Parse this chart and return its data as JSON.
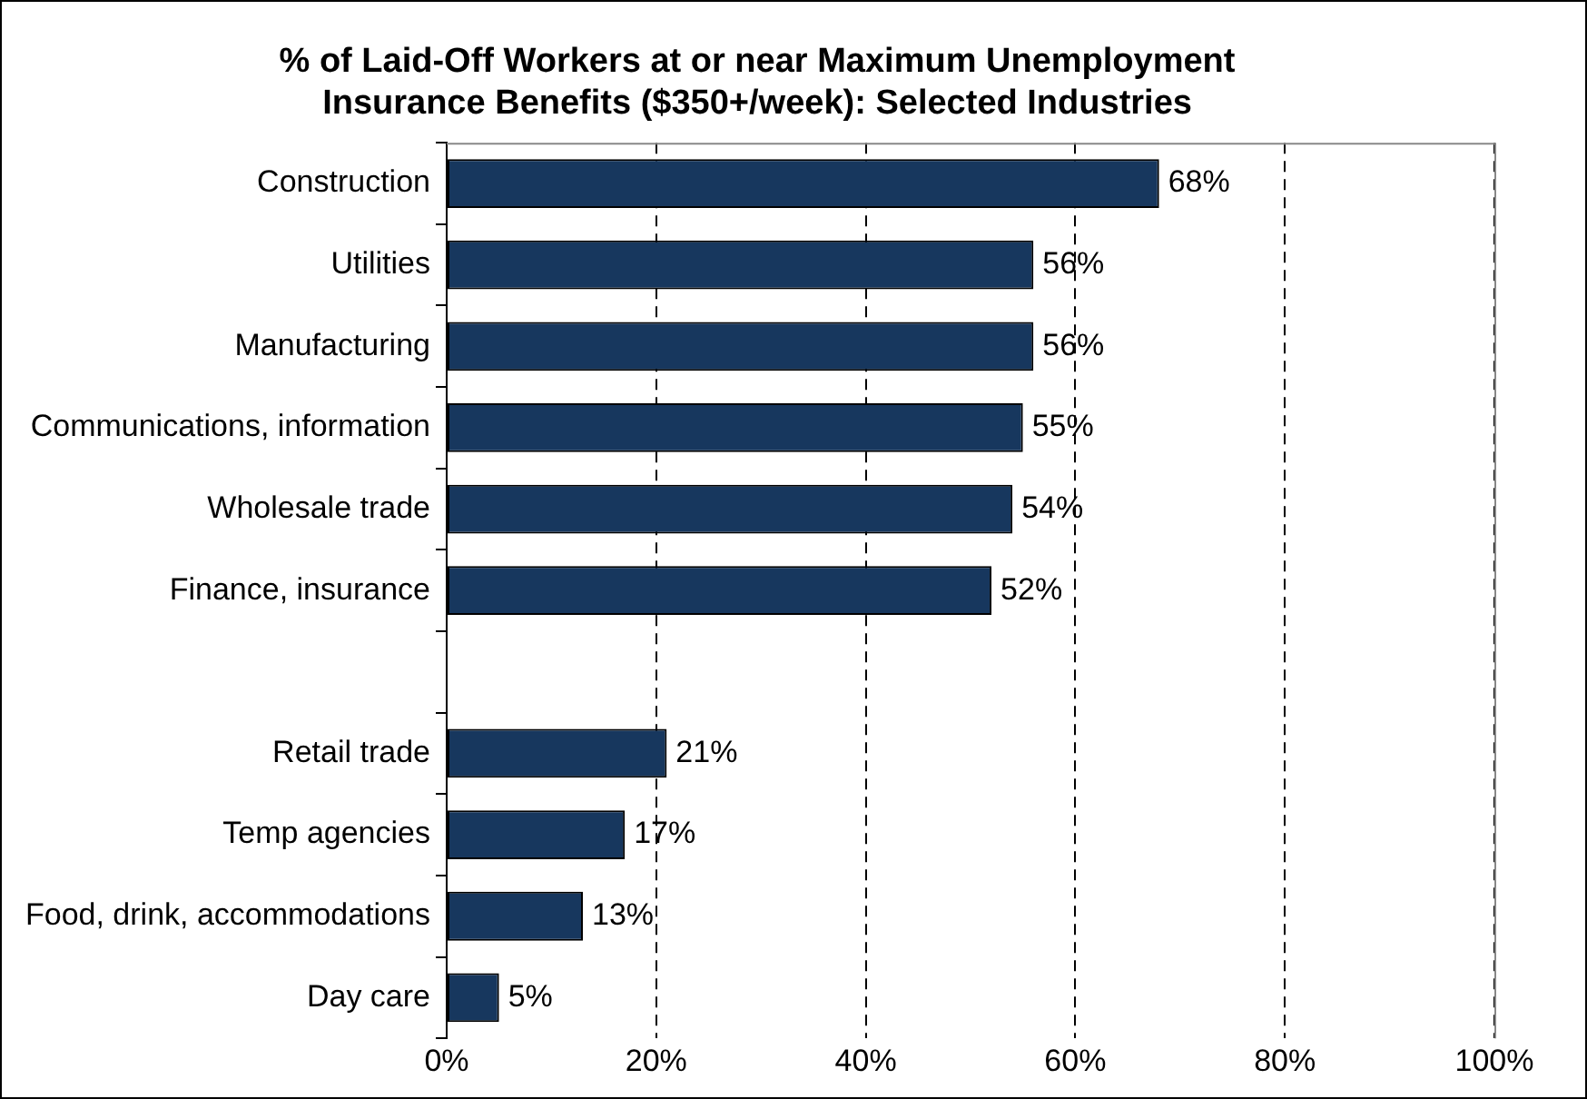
{
  "chart_data": {
    "type": "bar",
    "orientation": "horizontal",
    "title": "% of Laid-Off Workers at or near Maximum Unemployment Insurance Benefits ($350+/week): Selected Industries",
    "categories": [
      "Construction",
      "Utilities",
      "Manufacturing",
      "Communications, information",
      "Wholesale trade",
      "Finance, insurance",
      null,
      "Retail trade",
      "Temp agencies",
      "Food, drink, accommodations",
      "Day care"
    ],
    "values": [
      68,
      56,
      56,
      55,
      54,
      52,
      null,
      21,
      17,
      13,
      5
    ],
    "value_labels": [
      "68%",
      "56%",
      "56%",
      "55%",
      "54%",
      "52%",
      null,
      "21%",
      "17%",
      "13%",
      "5%"
    ],
    "color": "#17375e",
    "xlim": [
      0,
      100
    ],
    "xticks": [
      {
        "value": 0,
        "label": "0%"
      },
      {
        "value": 20,
        "label": "20%"
      },
      {
        "value": 40,
        "label": "40%"
      },
      {
        "value": 60,
        "label": "60%"
      },
      {
        "value": 80,
        "label": "80%"
      },
      {
        "value": 100,
        "label": "100%"
      }
    ],
    "grid": "x",
    "legend": false
  }
}
